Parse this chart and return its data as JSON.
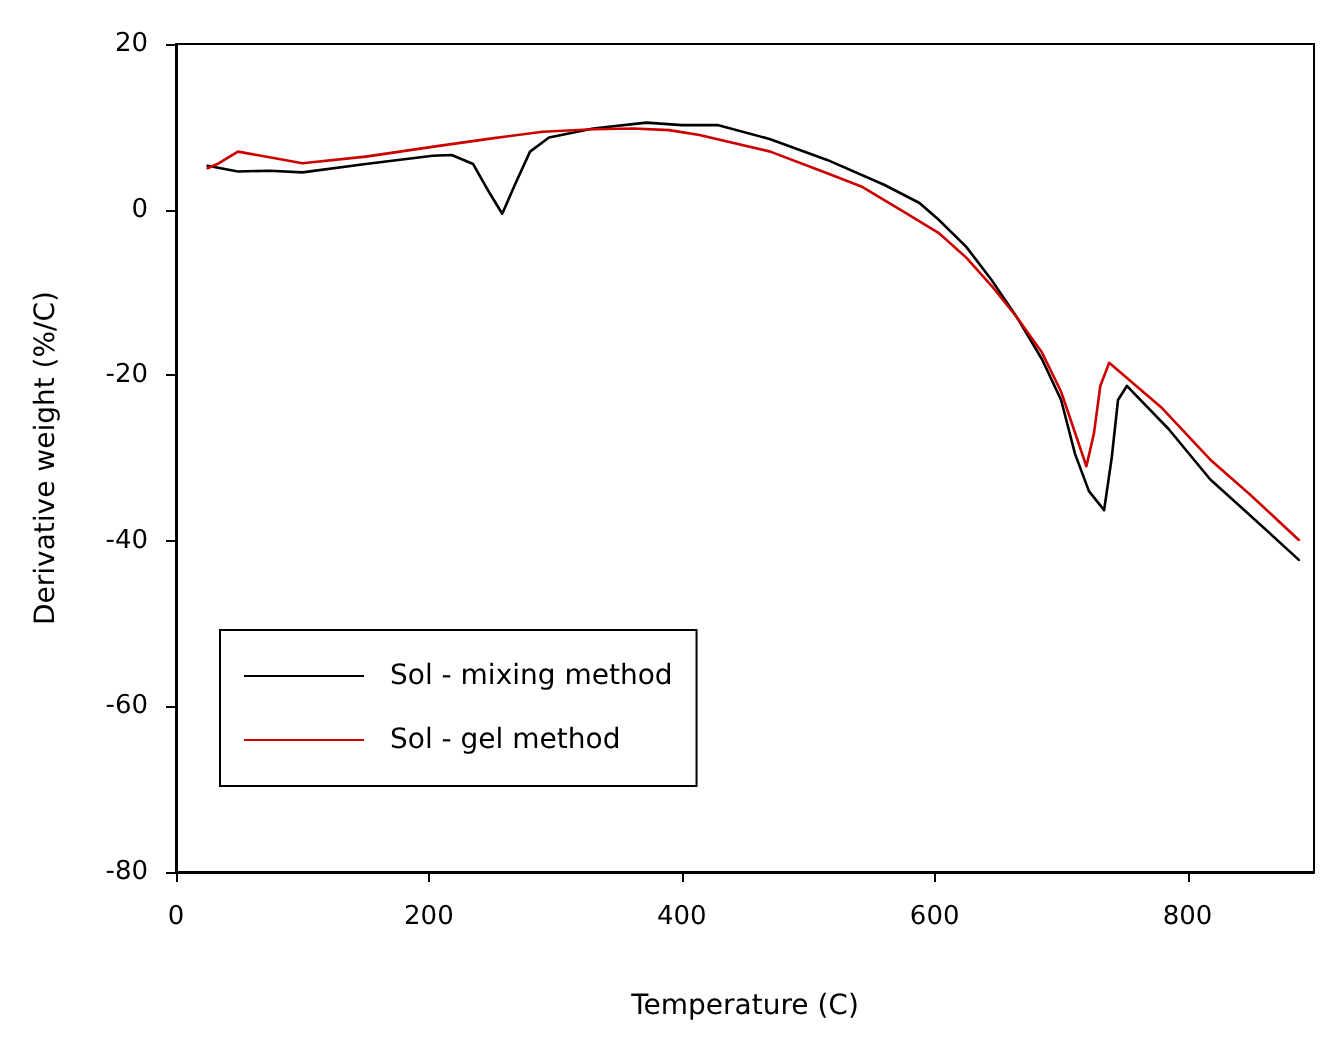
{
  "chart_data": {
    "type": "line",
    "xlabel": "Temperature (C)",
    "ylabel": "Derivative weight (%/C)",
    "xlim": [
      0,
      900
    ],
    "xticks": [
      0,
      200,
      400,
      600,
      800
    ],
    "ylim": [
      -80,
      20
    ],
    "yticks": [
      -80,
      -60,
      -40,
      -20,
      0,
      20
    ],
    "grid": false,
    "legend": "bottom left",
    "marker": "none",
    "line_style": "solid",
    "series": [
      {
        "name": "Sol - mixing method",
        "color": "#000000",
        "x": [
          25,
          49,
          74,
          100,
          150,
          203,
          218,
          235,
          248,
          258,
          268,
          280,
          295,
          330,
          372,
          400,
          429,
          470,
          515,
          560,
          588,
          603,
          625,
          645,
          665,
          685,
          700,
          711,
          722,
          734,
          740,
          745,
          752,
          785,
          818,
          850,
          888
        ],
        "values": [
          5.3,
          4.6,
          4.7,
          4.5,
          5.5,
          6.5,
          6.6,
          5.5,
          2,
          -0.5,
          3,
          7,
          8.7,
          9.8,
          10.5,
          10.2,
          10.2,
          8.5,
          6,
          3,
          0.8,
          -1.2,
          -4.5,
          -8.5,
          -13,
          -18.1,
          -23,
          -29.5,
          -34,
          -36.3,
          -30,
          -23,
          -21.3,
          -26.5,
          -32.6,
          -37,
          -42.3
        ]
      },
      {
        "name": "Sol - gel method",
        "color": "#cc0000",
        "x": [
          25,
          34,
          49,
          75,
          100,
          150,
          208,
          250,
          290,
          330,
          362,
          390,
          414,
          470,
          515,
          542,
          577,
          603,
          625,
          645,
          665,
          685,
          700,
          710,
          720,
          726,
          731,
          738,
          780,
          818,
          850,
          888
        ],
        "values": [
          5,
          5.6,
          7,
          6.3,
          5.6,
          6.4,
          7.7,
          8.6,
          9.4,
          9.7,
          9.8,
          9.6,
          9,
          7,
          4.4,
          2.8,
          -0.4,
          -2.8,
          -5.8,
          -9.2,
          -13,
          -17.3,
          -22,
          -26.5,
          -31,
          -27,
          -21.3,
          -18.5,
          -24,
          -30.2,
          -34.5,
          -39.9
        ]
      }
    ]
  }
}
